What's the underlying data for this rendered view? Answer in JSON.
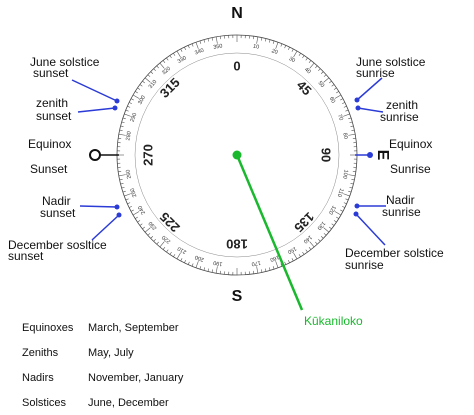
{
  "compass": {
    "north": "N",
    "south": "S",
    "east": "E",
    "major_labels": [
      "0",
      "45",
      "90",
      "135",
      "180",
      "225",
      "270",
      "315"
    ],
    "ring_labels": [
      "10",
      "20",
      "30",
      "40",
      "50",
      "60",
      "70",
      "80",
      "100",
      "110",
      "120",
      "130",
      "140",
      "150",
      "160",
      "170",
      "190",
      "200",
      "210",
      "220",
      "230",
      "240",
      "250",
      "260",
      "280",
      "290",
      "300",
      "310",
      "320",
      "330",
      "340",
      "350"
    ]
  },
  "labels": {
    "june_sunset": [
      "June solstice",
      "sunset"
    ],
    "zenith_sunset": [
      "zenith",
      "sunset"
    ],
    "equinox_sunset": [
      "Equinox",
      "Sunset"
    ],
    "nadir_sunset": [
      "Nadir",
      "sunset"
    ],
    "december_sunset": [
      "December sosltice",
      "sunset"
    ],
    "june_sunrise": [
      "June solstice",
      "sunrise"
    ],
    "zenith_sunrise": [
      "zenith",
      "sunrise"
    ],
    "equinox_sunrise": [
      "Equinox",
      "Sunrise"
    ],
    "nadir_sunrise": [
      "Nadir",
      "sunrise"
    ],
    "december_sunrise": [
      "December solstice",
      "sunrise"
    ],
    "site": "Kūkaniloko"
  },
  "legend": {
    "rows": [
      [
        "Equinoxes",
        "March, September"
      ],
      [
        "Zeniths",
        "May, July"
      ],
      [
        "Nadirs",
        "November, January"
      ],
      [
        "Solstices",
        "June, December"
      ]
    ]
  }
}
